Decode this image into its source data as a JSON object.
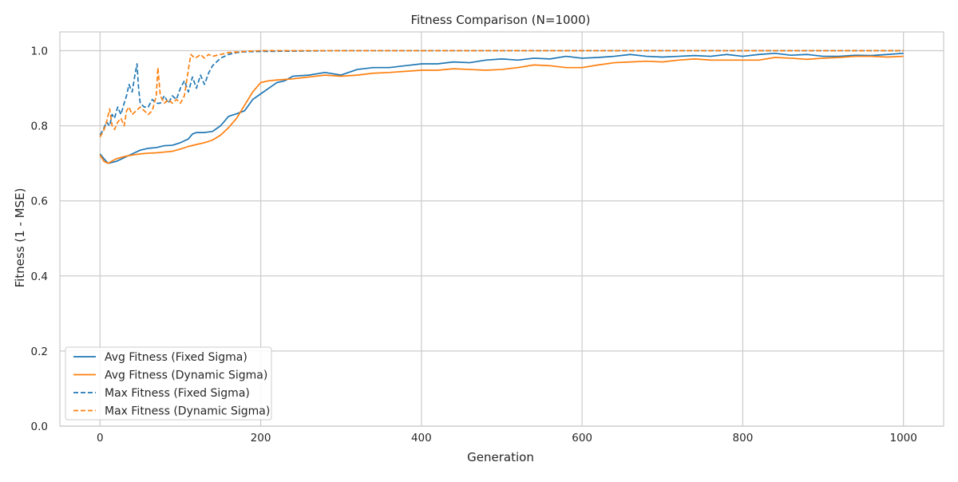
{
  "chart_data": {
    "type": "line",
    "title": "Fitness Comparison (N=1000)",
    "xlabel": "Generation",
    "ylabel": "Fitness (1 - MSE)",
    "xlim": [
      -50,
      1050
    ],
    "ylim": [
      0.0,
      1.05
    ],
    "xticks": [
      0,
      200,
      400,
      600,
      800,
      1000
    ],
    "yticks": [
      0.0,
      0.2,
      0.4,
      0.6,
      0.8,
      1.0
    ],
    "xtick_labels": [
      "0",
      "200",
      "400",
      "600",
      "800",
      "1000"
    ],
    "ytick_labels": [
      "0.0",
      "0.2",
      "0.4",
      "0.6",
      "0.8",
      "1.0"
    ],
    "grid": true,
    "legend_position": "lower-left",
    "series": [
      {
        "name": "Avg Fitness (Fixed Sigma)",
        "color": "#1f77b4",
        "style": "solid",
        "points": [
          [
            0,
            0.725
          ],
          [
            5,
            0.712
          ],
          [
            10,
            0.7
          ],
          [
            20,
            0.705
          ],
          [
            30,
            0.715
          ],
          [
            40,
            0.725
          ],
          [
            50,
            0.735
          ],
          [
            60,
            0.74
          ],
          [
            70,
            0.742
          ],
          [
            80,
            0.747
          ],
          [
            90,
            0.748
          ],
          [
            100,
            0.755
          ],
          [
            110,
            0.765
          ],
          [
            115,
            0.778
          ],
          [
            120,
            0.782
          ],
          [
            130,
            0.782
          ],
          [
            140,
            0.785
          ],
          [
            150,
            0.8
          ],
          [
            160,
            0.825
          ],
          [
            170,
            0.832
          ],
          [
            180,
            0.84
          ],
          [
            190,
            0.87
          ],
          [
            200,
            0.885
          ],
          [
            210,
            0.9
          ],
          [
            220,
            0.915
          ],
          [
            230,
            0.92
          ],
          [
            240,
            0.932
          ],
          [
            260,
            0.935
          ],
          [
            280,
            0.942
          ],
          [
            300,
            0.935
          ],
          [
            320,
            0.95
          ],
          [
            340,
            0.955
          ],
          [
            360,
            0.955
          ],
          [
            380,
            0.96
          ],
          [
            400,
            0.965
          ],
          [
            420,
            0.965
          ],
          [
            440,
            0.97
          ],
          [
            460,
            0.968
          ],
          [
            480,
            0.975
          ],
          [
            500,
            0.978
          ],
          [
            520,
            0.975
          ],
          [
            540,
            0.98
          ],
          [
            560,
            0.978
          ],
          [
            580,
            0.985
          ],
          [
            600,
            0.98
          ],
          [
            620,
            0.982
          ],
          [
            640,
            0.985
          ],
          [
            660,
            0.99
          ],
          [
            680,
            0.985
          ],
          [
            700,
            0.983
          ],
          [
            720,
            0.985
          ],
          [
            740,
            0.987
          ],
          [
            760,
            0.985
          ],
          [
            780,
            0.99
          ],
          [
            800,
            0.985
          ],
          [
            820,
            0.99
          ],
          [
            840,
            0.993
          ],
          [
            860,
            0.988
          ],
          [
            880,
            0.99
          ],
          [
            900,
            0.985
          ],
          [
            920,
            0.985
          ],
          [
            940,
            0.988
          ],
          [
            960,
            0.987
          ],
          [
            980,
            0.99
          ],
          [
            1000,
            0.993
          ]
        ]
      },
      {
        "name": "Avg Fitness (Dynamic Sigma)",
        "color": "#ff7f0e",
        "style": "solid",
        "points": [
          [
            0,
            0.722
          ],
          [
            5,
            0.705
          ],
          [
            10,
            0.7
          ],
          [
            20,
            0.712
          ],
          [
            30,
            0.718
          ],
          [
            40,
            0.722
          ],
          [
            50,
            0.725
          ],
          [
            60,
            0.727
          ],
          [
            70,
            0.728
          ],
          [
            80,
            0.73
          ],
          [
            90,
            0.732
          ],
          [
            100,
            0.738
          ],
          [
            110,
            0.745
          ],
          [
            120,
            0.75
          ],
          [
            130,
            0.755
          ],
          [
            140,
            0.762
          ],
          [
            150,
            0.775
          ],
          [
            160,
            0.795
          ],
          [
            170,
            0.82
          ],
          [
            180,
            0.855
          ],
          [
            190,
            0.89
          ],
          [
            200,
            0.915
          ],
          [
            210,
            0.92
          ],
          [
            220,
            0.922
          ],
          [
            240,
            0.925
          ],
          [
            260,
            0.93
          ],
          [
            280,
            0.935
          ],
          [
            300,
            0.932
          ],
          [
            320,
            0.935
          ],
          [
            340,
            0.94
          ],
          [
            360,
            0.942
          ],
          [
            380,
            0.945
          ],
          [
            400,
            0.948
          ],
          [
            420,
            0.948
          ],
          [
            440,
            0.952
          ],
          [
            460,
            0.95
          ],
          [
            480,
            0.948
          ],
          [
            500,
            0.95
          ],
          [
            520,
            0.955
          ],
          [
            540,
            0.962
          ],
          [
            560,
            0.96
          ],
          [
            580,
            0.955
          ],
          [
            600,
            0.955
          ],
          [
            620,
            0.962
          ],
          [
            640,
            0.968
          ],
          [
            660,
            0.97
          ],
          [
            680,
            0.972
          ],
          [
            700,
            0.97
          ],
          [
            720,
            0.975
          ],
          [
            740,
            0.978
          ],
          [
            760,
            0.975
          ],
          [
            780,
            0.975
          ],
          [
            800,
            0.975
          ],
          [
            820,
            0.975
          ],
          [
            840,
            0.982
          ],
          [
            860,
            0.98
          ],
          [
            880,
            0.977
          ],
          [
            900,
            0.98
          ],
          [
            920,
            0.982
          ],
          [
            940,
            0.985
          ],
          [
            960,
            0.985
          ],
          [
            980,
            0.983
          ],
          [
            1000,
            0.985
          ]
        ]
      },
      {
        "name": "Max Fitness (Fixed Sigma)",
        "color": "#1f77b4",
        "style": "dashed",
        "points": [
          [
            0,
            0.775
          ],
          [
            4,
            0.79
          ],
          [
            8,
            0.81
          ],
          [
            12,
            0.8
          ],
          [
            15,
            0.83
          ],
          [
            18,
            0.82
          ],
          [
            22,
            0.85
          ],
          [
            26,
            0.83
          ],
          [
            30,
            0.86
          ],
          [
            33,
            0.88
          ],
          [
            36,
            0.91
          ],
          [
            40,
            0.89
          ],
          [
            43,
            0.93
          ],
          [
            46,
            0.965
          ],
          [
            48,
            0.9
          ],
          [
            50,
            0.86
          ],
          [
            55,
            0.85
          ],
          [
            60,
            0.85
          ],
          [
            65,
            0.87
          ],
          [
            70,
            0.86
          ],
          [
            75,
            0.86
          ],
          [
            80,
            0.88
          ],
          [
            85,
            0.86
          ],
          [
            90,
            0.88
          ],
          [
            95,
            0.87
          ],
          [
            100,
            0.9
          ],
          [
            105,
            0.92
          ],
          [
            110,
            0.89
          ],
          [
            115,
            0.93
          ],
          [
            120,
            0.9
          ],
          [
            125,
            0.935
          ],
          [
            130,
            0.91
          ],
          [
            135,
            0.94
          ],
          [
            140,
            0.96
          ],
          [
            145,
            0.97
          ],
          [
            150,
            0.98
          ],
          [
            155,
            0.985
          ],
          [
            160,
            0.99
          ],
          [
            170,
            0.995
          ],
          [
            180,
            0.997
          ],
          [
            200,
            0.998
          ],
          [
            250,
            0.999
          ],
          [
            300,
            1.0
          ],
          [
            400,
            1.0
          ],
          [
            500,
            1.0
          ],
          [
            600,
            1.0
          ],
          [
            700,
            1.0
          ],
          [
            800,
            1.0
          ],
          [
            900,
            1.0
          ],
          [
            1000,
            1.0
          ]
        ]
      },
      {
        "name": "Max Fitness (Dynamic Sigma)",
        "color": "#ff7f0e",
        "style": "dashed",
        "points": [
          [
            0,
            0.77
          ],
          [
            5,
            0.79
          ],
          [
            8,
            0.81
          ],
          [
            12,
            0.845
          ],
          [
            15,
            0.8
          ],
          [
            18,
            0.79
          ],
          [
            22,
            0.81
          ],
          [
            26,
            0.82
          ],
          [
            30,
            0.8
          ],
          [
            33,
            0.84
          ],
          [
            36,
            0.85
          ],
          [
            40,
            0.83
          ],
          [
            45,
            0.84
          ],
          [
            50,
            0.85
          ],
          [
            55,
            0.84
          ],
          [
            60,
            0.83
          ],
          [
            65,
            0.84
          ],
          [
            70,
            0.88
          ],
          [
            72,
            0.955
          ],
          [
            75,
            0.88
          ],
          [
            80,
            0.86
          ],
          [
            85,
            0.87
          ],
          [
            90,
            0.86
          ],
          [
            95,
            0.87
          ],
          [
            100,
            0.86
          ],
          [
            105,
            0.88
          ],
          [
            110,
            0.95
          ],
          [
            113,
            0.99
          ],
          [
            118,
            0.98
          ],
          [
            122,
            0.985
          ],
          [
            125,
            0.99
          ],
          [
            130,
            0.98
          ],
          [
            135,
            0.99
          ],
          [
            140,
            0.985
          ],
          [
            150,
            0.99
          ],
          [
            160,
            0.995
          ],
          [
            180,
            0.998
          ],
          [
            200,
            1.0
          ],
          [
            300,
            1.0
          ],
          [
            400,
            1.0
          ],
          [
            500,
            1.0
          ],
          [
            600,
            1.0
          ],
          [
            700,
            1.0
          ],
          [
            800,
            1.0
          ],
          [
            900,
            1.0
          ],
          [
            1000,
            1.0
          ]
        ]
      }
    ]
  }
}
